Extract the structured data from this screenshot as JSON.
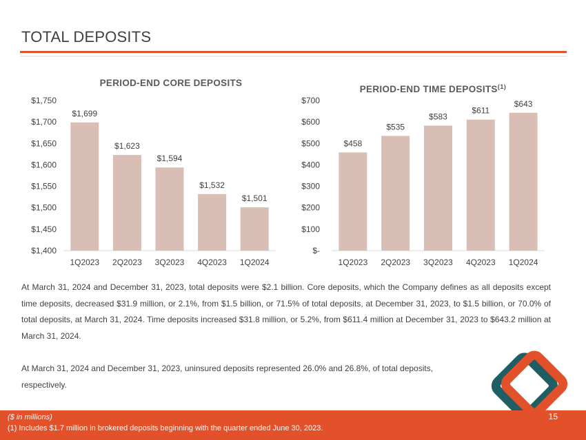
{
  "page": {
    "title": "TOTAL DEPOSITS",
    "paragraph1": "At March 31, 2024 and December 31, 2023, total deposits were $2.1 billion. Core deposits, which the Company defines as all deposits except time deposits, decreased $31.9 million, or 2.1%, from $1.5 billion, or 71.5% of total deposits, at December 31, 2023, to $1.5 billion, or 70.0% of total deposits, at March 31, 2024. Time deposits increased $31.8 million, or 5.2%, from $611.4 million at December 31, 2023 to $643.2 million at March 31, 2024.",
    "paragraph2": "At March 31, 2024 and December 31, 2023, uninsured deposits represented 26.0% and 26.8%, of total deposits, respectively.",
    "footer_units": "($ in millions)",
    "footer_note": "(1) Includes $1.7 million in brokered deposits beginning with the quarter ended June 30, 2023.",
    "page_number": "15"
  },
  "colors": {
    "accent": "#e2512a",
    "bar": "#d9beb5",
    "logo_orange": "#e2512a",
    "logo_teal": "#1f5f63"
  },
  "chart_data": [
    {
      "type": "bar",
      "title": "PERIOD-END CORE DEPOSITS",
      "categories": [
        "1Q2023",
        "2Q2023",
        "3Q2023",
        "4Q2023",
        "1Q2024"
      ],
      "values": [
        1699,
        1623,
        1594,
        1532,
        1501
      ],
      "value_labels": [
        "$1,699",
        "$1,623",
        "$1,594",
        "$1,532",
        "$1,501"
      ],
      "ylim": [
        1400,
        1750
      ],
      "yticks": [
        1400,
        1450,
        1500,
        1550,
        1600,
        1650,
        1700,
        1750
      ],
      "ytick_labels": [
        "$1,400",
        "$1,450",
        "$1,500",
        "$1,550",
        "$1,600",
        "$1,650",
        "$1,700",
        "$1,750"
      ],
      "grid": false,
      "legend": "none"
    },
    {
      "type": "bar",
      "title": "PERIOD-END TIME DEPOSITS",
      "title_superscript": "(1)",
      "categories": [
        "1Q2023",
        "2Q2023",
        "3Q2023",
        "4Q2023",
        "1Q2024"
      ],
      "values": [
        458,
        535,
        583,
        611,
        643
      ],
      "value_labels": [
        "$458",
        "$535",
        "$583",
        "$611",
        "$643"
      ],
      "ylim": [
        0,
        700
      ],
      "yticks": [
        0,
        100,
        200,
        300,
        400,
        500,
        600,
        700
      ],
      "ytick_labels": [
        "$-",
        "$100",
        "$200",
        "$300",
        "$400",
        "$500",
        "$600",
        "$700"
      ],
      "grid": false,
      "legend": "none"
    }
  ]
}
